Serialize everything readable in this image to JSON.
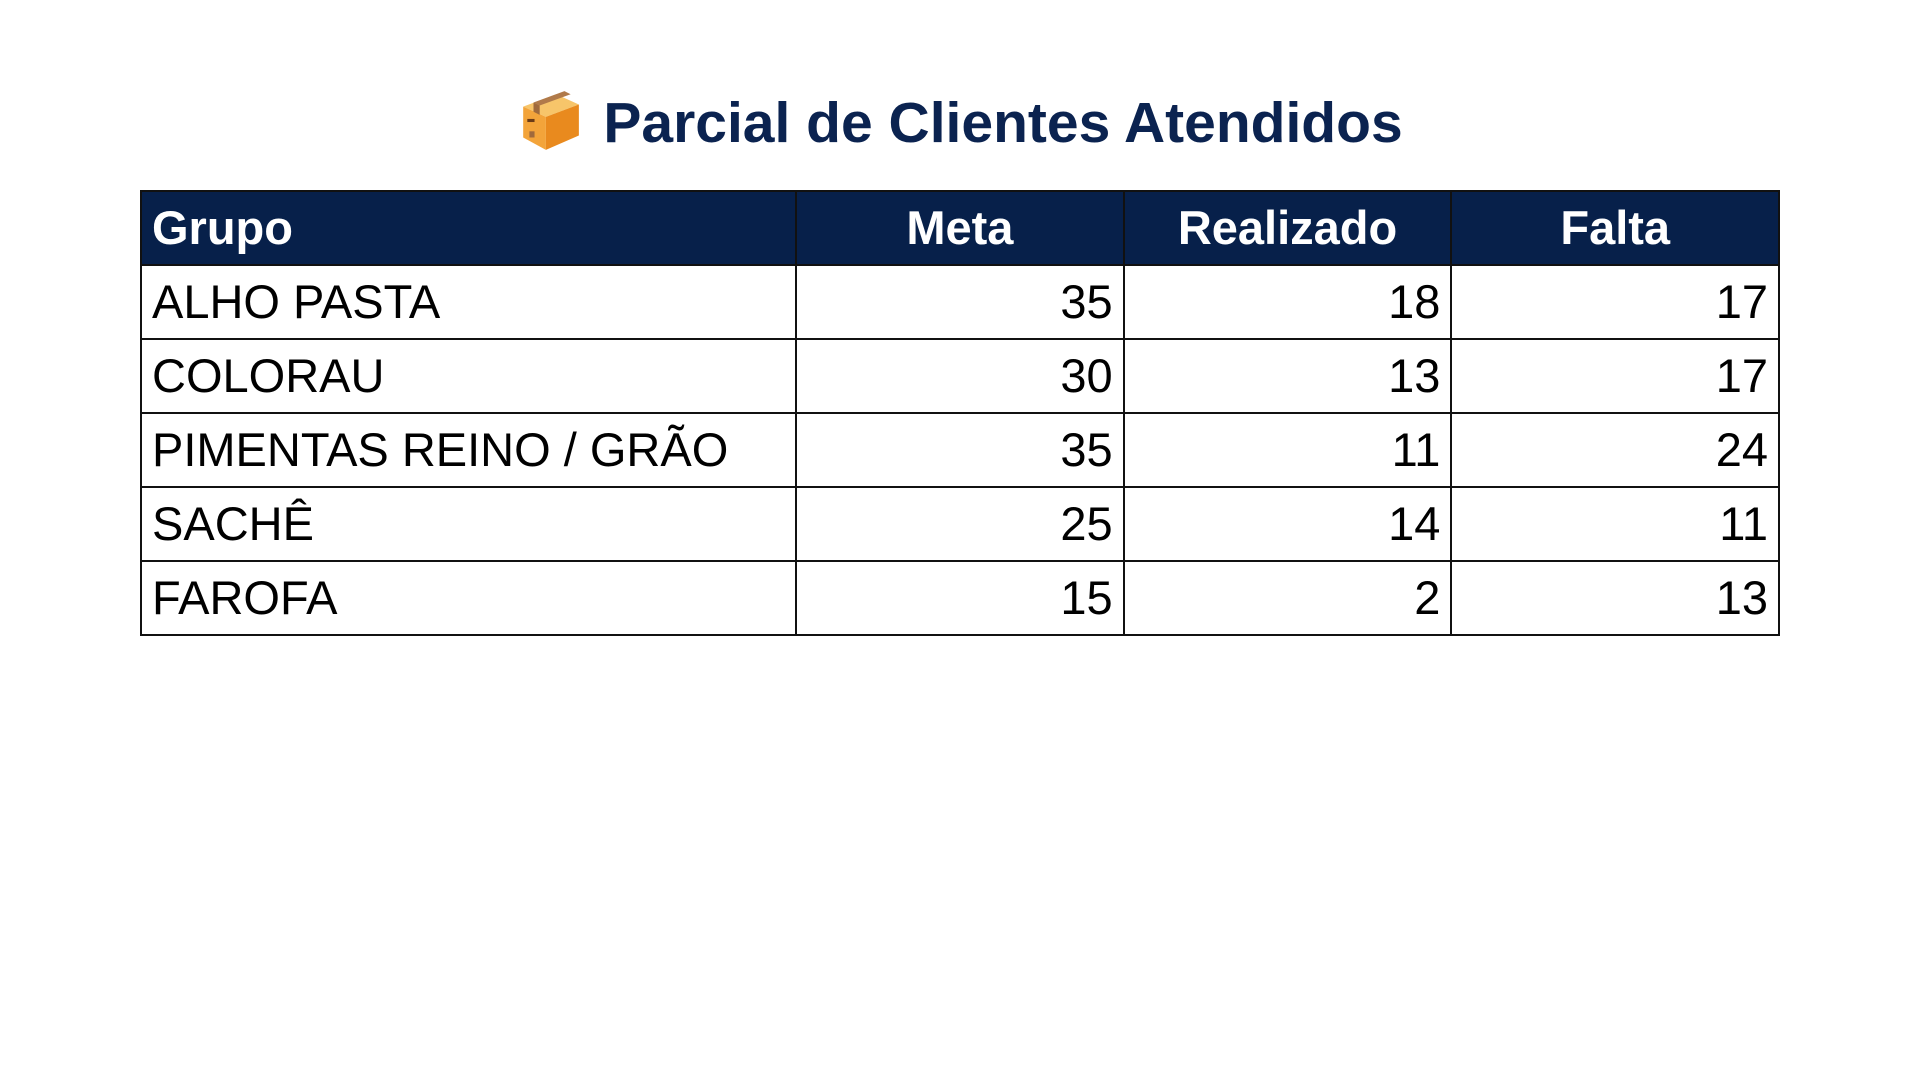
{
  "title": "Parcial de Clientes Atendidos",
  "title_icon": "package-box-icon",
  "colors": {
    "header_bg": "#07204a",
    "title": "#0b2350"
  },
  "table": {
    "headers": [
      "Grupo",
      "Meta",
      "Realizado",
      "Falta"
    ],
    "rows": [
      [
        "ALHO PASTA",
        "35",
        "18",
        "17"
      ],
      [
        "COLORAU",
        "30",
        "13",
        "17"
      ],
      [
        "PIMENTAS REINO / GRÃO",
        "35",
        "11",
        "24"
      ],
      [
        "SACHÊ",
        "25",
        "14",
        "11"
      ],
      [
        "FAROFA",
        "15",
        "2",
        "13"
      ]
    ]
  }
}
